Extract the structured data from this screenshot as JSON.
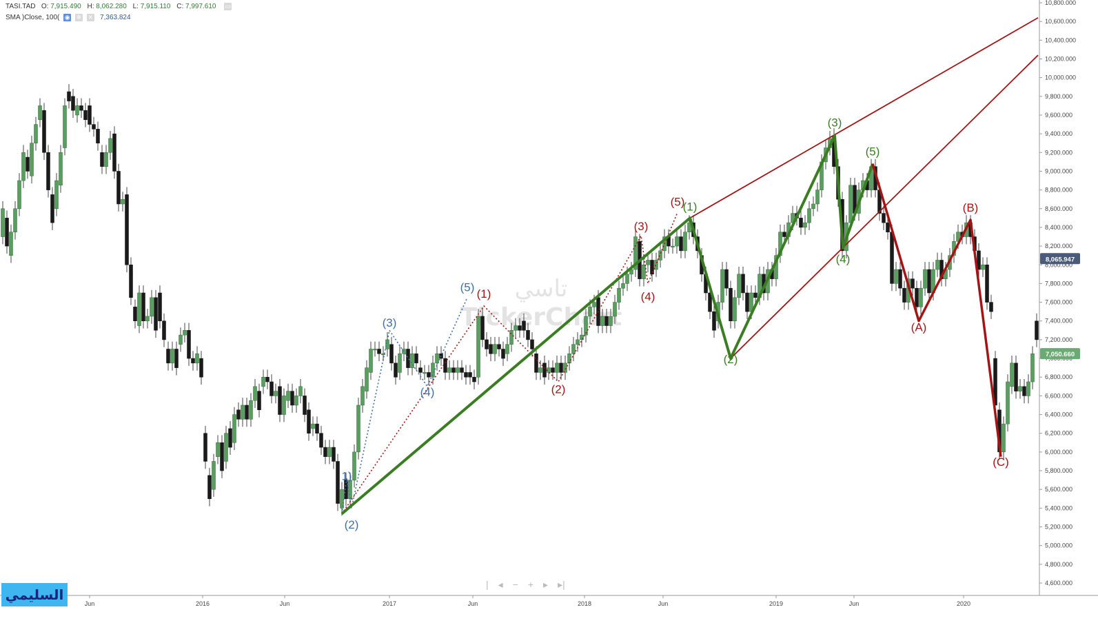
{
  "header": {
    "symbol": "TASI.TAD",
    "open_label": "O:",
    "open": "7,915.490",
    "high_label": "H:",
    "high": "8,062.280",
    "low_label": "L:",
    "low": "7,915.110",
    "close_label": "C:",
    "close": "7,997.610",
    "sma_label": "SMA )Close, 100(",
    "sma_value": "7,363.824"
  },
  "watermark": {
    "arabic": "تاسي",
    "latin": "TickerChart"
  },
  "logo_text": "السليمي",
  "colors": {
    "up": "#5a9e5f",
    "down": "#1a1a1a",
    "green_wave": "#3a7d22",
    "red": "#a31515",
    "blue": "#3d6fa8",
    "price_tag_dark": "#4a5a7a",
    "price_tag_green": "#6aab73"
  },
  "chart_data": {
    "type": "candlestick",
    "x_ticks": [
      "Jun",
      "2016",
      "Jun",
      "2017",
      "Jun",
      "2018",
      "Jun",
      "2019",
      "Jun",
      "2020"
    ],
    "y_ticks": [
      "10,800.000",
      "10,600.000",
      "10,400.000",
      "10,200.000",
      "10,000.000",
      "9,800.000",
      "9,600.000",
      "9,400.000",
      "9,200.000",
      "9,000.000",
      "8,800.000",
      "8,600.000",
      "8,400.000",
      "8,200.000",
      "8,000.000",
      "7,800.000",
      "7,600.000",
      "7,400.000",
      "7,200.000",
      "7,000.000",
      "6,800.000",
      "6,600.000",
      "6,400.000",
      "6,200.000",
      "6,000.000",
      "5,800.000",
      "5,600.000",
      "5,400.000",
      "5,200.000",
      "5,000.000",
      "4,800.000",
      "4,600.000"
    ],
    "ylim": [
      4550,
      10850
    ],
    "price_tags": [
      {
        "value": 8065.947,
        "label": "8,065.947",
        "style": "dark"
      },
      {
        "value": 7050.66,
        "label": "7,050.660",
        "style": "green"
      }
    ],
    "wave_labels": [
      {
        "text": "(2)",
        "t": 510,
        "y": 5180,
        "color": "blue"
      },
      {
        "text": "1)",
        "t": 503,
        "y": 5700,
        "color": "blue"
      },
      {
        "text": "(3)",
        "t": 565,
        "y": 7340,
        "color": "blue"
      },
      {
        "text": "(4)",
        "t": 620,
        "y": 6600,
        "color": "blue"
      },
      {
        "text": "(5)",
        "t": 678,
        "y": 7720,
        "color": "blue"
      },
      {
        "text": "(1)",
        "t": 702,
        "y": 7650,
        "color": "red"
      },
      {
        "text": "(2)",
        "t": 810,
        "y": 6630,
        "color": "red"
      },
      {
        "text": "(3)",
        "t": 930,
        "y": 8370,
        "color": "red"
      },
      {
        "text": "(4)",
        "t": 940,
        "y": 7620,
        "color": "red"
      },
      {
        "text": "(5)",
        "t": 983,
        "y": 8630,
        "color": "red"
      },
      {
        "text": "(1)",
        "t": 1001,
        "y": 8580,
        "color": "green"
      },
      {
        "text": "(2)",
        "t": 1060,
        "y": 6950,
        "color": "green"
      },
      {
        "text": "(3)",
        "t": 1211,
        "y": 9480,
        "color": "green"
      },
      {
        "text": "(4)",
        "t": 1223,
        "y": 8020,
        "color": "green"
      },
      {
        "text": "(5)",
        "t": 1266,
        "y": 9170,
        "color": "green"
      },
      {
        "text": "(A)",
        "t": 1333,
        "y": 7290,
        "color": "red"
      },
      {
        "text": "(B)",
        "t": 1408,
        "y": 8570,
        "color": "red"
      },
      {
        "text": "(C)",
        "t": 1452,
        "y": 5850,
        "color": "red"
      }
    ],
    "green_wave_path": [
      [
        496,
        5340
      ],
      [
        1001,
        8500
      ],
      [
        1060,
        7000
      ],
      [
        1211,
        9380
      ],
      [
        1223,
        8180
      ],
      [
        1266,
        9080
      ]
    ],
    "green_trend_line": [
      [
        496,
        5340
      ],
      [
        1001,
        8500
      ]
    ],
    "red_wave_path": [
      [
        1266,
        9080
      ],
      [
        1333,
        7400
      ],
      [
        1408,
        8480
      ],
      [
        1452,
        5950
      ]
    ],
    "red_channel_upper": [
      [
        1001,
        8500
      ],
      [
        1506,
        10640
      ]
    ],
    "red_channel_lower": [
      [
        1060,
        7000
      ],
      [
        1506,
        10240
      ]
    ],
    "blue_dotted_path": [
      [
        496,
        5340
      ],
      [
        503,
        5720
      ],
      [
        510,
        5400
      ],
      [
        565,
        7300
      ],
      [
        620,
        6700
      ],
      [
        678,
        7650
      ]
    ],
    "red_dotted_path": [
      [
        496,
        5340
      ],
      [
        702,
        7560
      ],
      [
        810,
        6750
      ],
      [
        930,
        8310
      ],
      [
        940,
        7800
      ],
      [
        983,
        8560
      ]
    ],
    "candles": [
      [
        4,
        8300,
        8600
      ],
      [
        10,
        8500,
        8200
      ],
      [
        16,
        8100,
        8350
      ],
      [
        22,
        8350,
        8600
      ],
      [
        28,
        8600,
        8900
      ],
      [
        34,
        8900,
        9200
      ],
      [
        40,
        9150,
        9000
      ],
      [
        46,
        8950,
        9300
      ],
      [
        52,
        9300,
        9500
      ],
      [
        58,
        9550,
        9700
      ],
      [
        64,
        9650,
        9200
      ],
      [
        70,
        9200,
        8800
      ],
      [
        76,
        8750,
        8450
      ],
      [
        82,
        8600,
        8900
      ],
      [
        88,
        8850,
        9200
      ],
      [
        94,
        9250,
        9700
      ],
      [
        100,
        9850,
        9750
      ],
      [
        106,
        9800,
        9650
      ],
      [
        112,
        9600,
        9700
      ],
      [
        118,
        9700,
        9650
      ],
      [
        124,
        9650,
        9550
      ],
      [
        130,
        9700,
        9500
      ],
      [
        136,
        9500,
        9450
      ],
      [
        142,
        9450,
        9300
      ],
      [
        148,
        9200,
        9050
      ],
      [
        154,
        9050,
        9200
      ],
      [
        160,
        9200,
        9350
      ],
      [
        166,
        9400,
        9000
      ],
      [
        172,
        9000,
        8650
      ],
      [
        178,
        8650,
        8700
      ],
      [
        184,
        8750,
        8000
      ],
      [
        190,
        8000,
        7650
      ],
      [
        196,
        7550,
        7400
      ],
      [
        202,
        7350,
        7700
      ],
      [
        208,
        7700,
        7400
      ],
      [
        214,
        7400,
        7450
      ],
      [
        220,
        7450,
        7650
      ],
      [
        226,
        7650,
        7300
      ],
      [
        232,
        7700,
        7400
      ],
      [
        238,
        7400,
        7200
      ],
      [
        244,
        7100,
        6950
      ],
      [
        250,
        6950,
        7100
      ],
      [
        256,
        7100,
        6900
      ],
      [
        262,
        7150,
        7250
      ],
      [
        268,
        7250,
        7300
      ],
      [
        274,
        7300,
        7000
      ],
      [
        280,
        7000,
        6950
      ],
      [
        286,
        6950,
        7050
      ],
      [
        292,
        7000,
        6800
      ],
      [
        298,
        6200,
        5900
      ],
      [
        304,
        5750,
        5500
      ],
      [
        310,
        5600,
        5900
      ],
      [
        316,
        5950,
        6100
      ],
      [
        322,
        6100,
        5800
      ],
      [
        328,
        5900,
        6200
      ],
      [
        334,
        6250,
        6050
      ],
      [
        340,
        6100,
        6400
      ],
      [
        346,
        6450,
        6350
      ],
      [
        352,
        6350,
        6500
      ],
      [
        358,
        6500,
        6350
      ],
      [
        364,
        6350,
        6550
      ],
      [
        370,
        6550,
        6700
      ],
      [
        376,
        6650,
        6450
      ],
      [
        382,
        6700,
        6800
      ],
      [
        388,
        6800,
        6750
      ],
      [
        394,
        6750,
        6600
      ],
      [
        400,
        6600,
        6650
      ],
      [
        406,
        6700,
        6400
      ],
      [
        412,
        6400,
        6600
      ],
      [
        418,
        6550,
        6650
      ],
      [
        424,
        6650,
        6500
      ],
      [
        430,
        6500,
        6600
      ],
      [
        436,
        6600,
        6700
      ],
      [
        442,
        6600,
        6400
      ],
      [
        448,
        6450,
        6200
      ],
      [
        454,
        6250,
        6300
      ],
      [
        460,
        6300,
        6200
      ],
      [
        466,
        6200,
        6050
      ],
      [
        472,
        6050,
        5950
      ],
      [
        478,
        5950,
        6050
      ],
      [
        484,
        6050,
        5900
      ],
      [
        490,
        5900,
        5450
      ],
      [
        496,
        5400,
        5600
      ],
      [
        502,
        5700,
        5500
      ],
      [
        508,
        5500,
        5700
      ],
      [
        514,
        5700,
        6000
      ],
      [
        520,
        6000,
        6500
      ],
      [
        526,
        6500,
        6700
      ],
      [
        532,
        6650,
        6900
      ],
      [
        538,
        6850,
        7100
      ],
      [
        544,
        7100,
        7100
      ],
      [
        550,
        7100,
        7050
      ],
      [
        556,
        7050,
        7050
      ],
      [
        562,
        7100,
        7200
      ],
      [
        568,
        7150,
        6950
      ],
      [
        574,
        6950,
        6800
      ],
      [
        580,
        6850,
        7050
      ],
      [
        586,
        7050,
        7100
      ],
      [
        592,
        7100,
        6900
      ],
      [
        598,
        6900,
        7050
      ],
      [
        604,
        7050,
        6950
      ],
      [
        610,
        6900,
        6850
      ],
      [
        616,
        6850,
        6850
      ],
      [
        622,
        6850,
        6800
      ],
      [
        628,
        6800,
        6950
      ],
      [
        634,
        6950,
        7050
      ],
      [
        640,
        7050,
        7000
      ],
      [
        646,
        7000,
        6850
      ],
      [
        652,
        6850,
        6900
      ],
      [
        658,
        6900,
        6850
      ],
      [
        664,
        6850,
        6900
      ],
      [
        670,
        6900,
        6850
      ],
      [
        676,
        6850,
        6800
      ],
      [
        682,
        6850,
        6800
      ],
      [
        688,
        6800,
        6750
      ],
      [
        694,
        6800,
        7450
      ],
      [
        700,
        7450,
        7200
      ],
      [
        706,
        7200,
        7100
      ],
      [
        712,
        7150,
        7050
      ],
      [
        718,
        7050,
        7150
      ],
      [
        724,
        7150,
        7100
      ],
      [
        730,
        7100,
        7000
      ],
      [
        736,
        7050,
        7150
      ],
      [
        742,
        7150,
        7300
      ],
      [
        748,
        7300,
        7350
      ],
      [
        754,
        7350,
        7300
      ],
      [
        760,
        7400,
        7300
      ],
      [
        766,
        7300,
        7200
      ],
      [
        772,
        7200,
        7100
      ],
      [
        778,
        7050,
        6850
      ],
      [
        784,
        6850,
        6900
      ],
      [
        790,
        6950,
        6800
      ],
      [
        796,
        6850,
        6900
      ],
      [
        802,
        6900,
        6850
      ],
      [
        808,
        6850,
        6950
      ],
      [
        814,
        6950,
        6850
      ],
      [
        820,
        6850,
        6950
      ],
      [
        826,
        6950,
        7050
      ],
      [
        832,
        7050,
        7150
      ],
      [
        838,
        7150,
        7200
      ],
      [
        844,
        7200,
        7250
      ],
      [
        850,
        7250,
        7450
      ],
      [
        856,
        7450,
        7550
      ],
      [
        862,
        7550,
        7600
      ],
      [
        868,
        7650,
        7350
      ],
      [
        874,
        7350,
        7450
      ],
      [
        880,
        7450,
        7350
      ],
      [
        886,
        7350,
        7450
      ],
      [
        892,
        7450,
        7600
      ],
      [
        898,
        7600,
        7750
      ],
      [
        904,
        7750,
        7800
      ],
      [
        910,
        7800,
        7900
      ],
      [
        916,
        7900,
        7950
      ],
      [
        922,
        7950,
        8300
      ],
      [
        928,
        8250,
        7850
      ],
      [
        934,
        7850,
        8000
      ],
      [
        940,
        8000,
        8050
      ],
      [
        946,
        8050,
        7900
      ],
      [
        952,
        7950,
        8050
      ],
      [
        958,
        8050,
        8150
      ],
      [
        964,
        8150,
        8300
      ],
      [
        970,
        8300,
        8200
      ],
      [
        976,
        8200,
        8200
      ],
      [
        982,
        8200,
        8300
      ],
      [
        988,
        8300,
        8150
      ],
      [
        994,
        8150,
        8350
      ],
      [
        1000,
        8350,
        8450
      ],
      [
        1006,
        8450,
        8300
      ],
      [
        1012,
        8300,
        8150
      ],
      [
        1018,
        8100,
        7900
      ],
      [
        1024,
        7900,
        7700
      ],
      [
        1030,
        7700,
        7500
      ],
      [
        1036,
        7500,
        7300
      ],
      [
        1042,
        7400,
        7600
      ],
      [
        1048,
        7600,
        7950
      ],
      [
        1054,
        7950,
        7750
      ],
      [
        1060,
        7750,
        7400
      ],
      [
        1066,
        7400,
        7650
      ],
      [
        1072,
        7650,
        7900
      ],
      [
        1078,
        7900,
        7700
      ],
      [
        1084,
        7700,
        7500
      ],
      [
        1090,
        7500,
        7700
      ],
      [
        1096,
        7700,
        7650
      ],
      [
        1102,
        7650,
        7900
      ],
      [
        1108,
        7900,
        7700
      ],
      [
        1114,
        7700,
        7950
      ],
      [
        1120,
        7950,
        7850
      ],
      [
        1126,
        7850,
        8100
      ],
      [
        1132,
        8100,
        8350
      ],
      [
        1138,
        8350,
        8300
      ],
      [
        1144,
        8300,
        8450
      ],
      [
        1150,
        8450,
        8550
      ],
      [
        1156,
        8550,
        8500
      ],
      [
        1162,
        8500,
        8400
      ],
      [
        1168,
        8400,
        8450
      ],
      [
        1174,
        8450,
        8600
      ],
      [
        1180,
        8600,
        8650
      ],
      [
        1186,
        8650,
        8800
      ],
      [
        1192,
        8800,
        9100
      ],
      [
        1198,
        9100,
        9250
      ],
      [
        1204,
        9250,
        9350
      ],
      [
        1210,
        9380,
        9050
      ],
      [
        1216,
        9050,
        8700
      ],
      [
        1222,
        8700,
        8150
      ],
      [
        1228,
        8150,
        8450
      ],
      [
        1234,
        8450,
        8850
      ],
      [
        1240,
        8850,
        8550
      ],
      [
        1246,
        8550,
        8800
      ],
      [
        1252,
        8800,
        8900
      ],
      [
        1258,
        8900,
        8800
      ],
      [
        1264,
        8800,
        9050
      ],
      [
        1270,
        9050,
        8800
      ],
      [
        1276,
        8800,
        8550
      ],
      [
        1282,
        8550,
        8450
      ],
      [
        1288,
        8450,
        8350
      ],
      [
        1294,
        8350,
        7800
      ],
      [
        1300,
        7800,
        7950
      ],
      [
        1306,
        7950,
        7750
      ],
      [
        1312,
        7750,
        7600
      ],
      [
        1318,
        7600,
        7850
      ],
      [
        1324,
        7850,
        7750
      ],
      [
        1330,
        7750,
        7550
      ],
      [
        1336,
        7550,
        7750
      ],
      [
        1342,
        7750,
        7950
      ],
      [
        1348,
        7950,
        7700
      ],
      [
        1354,
        7700,
        7950
      ],
      [
        1360,
        7950,
        8050
      ],
      [
        1366,
        8050,
        7850
      ],
      [
        1372,
        7850,
        7950
      ],
      [
        1378,
        7950,
        8100
      ],
      [
        1384,
        8100,
        8250
      ],
      [
        1390,
        8250,
        8350
      ],
      [
        1396,
        8350,
        8300
      ],
      [
        1402,
        8300,
        8450
      ],
      [
        1408,
        8450,
        8300
      ],
      [
        1414,
        8300,
        8150
      ],
      [
        1420,
        8150,
        7950
      ],
      [
        1426,
        7950,
        8000
      ],
      [
        1432,
        8000,
        7600
      ],
      [
        1438,
        7600,
        7500
      ],
      [
        1444,
        7000,
        6500
      ],
      [
        1450,
        6450,
        6000
      ],
      [
        1456,
        6000,
        6300
      ],
      [
        1462,
        6300,
        6750
      ],
      [
        1468,
        6700,
        6950
      ],
      [
        1474,
        6950,
        6650
      ],
      [
        1480,
        6650,
        6700
      ],
      [
        1486,
        6700,
        6600
      ],
      [
        1492,
        6600,
        6750
      ],
      [
        1498,
        6750,
        7050
      ],
      [
        1504,
        7400,
        7200
      ]
    ]
  }
}
